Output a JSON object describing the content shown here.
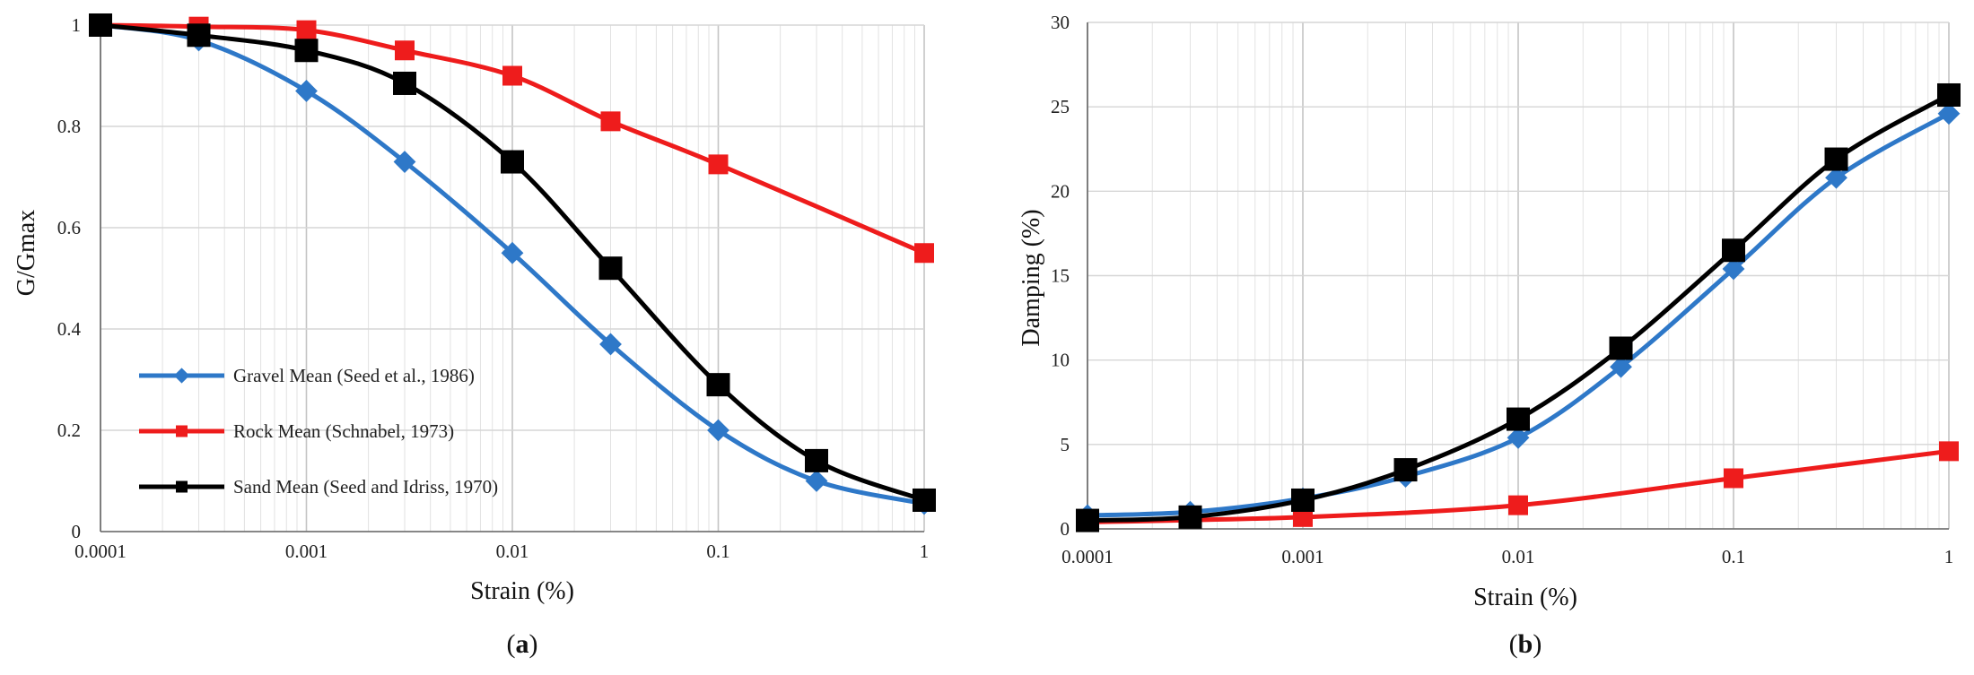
{
  "chart_data": [
    {
      "type": "line",
      "panel_label": "(a)",
      "panel_letter": "a",
      "xlabel": "Strain (%)",
      "ylabel": "G/Gmax",
      "xscale": "log",
      "xlim": [
        0.0001,
        1
      ],
      "ylim": [
        0,
        1
      ],
      "x_ticks": [
        "0.0001",
        "0.001",
        "0.01",
        "0.1",
        "1"
      ],
      "y_ticks": [
        "0",
        "0.2",
        "0.4",
        "0.6",
        "0.8",
        "1"
      ],
      "grid": true,
      "legend_position": "left-lower",
      "series": [
        {
          "name": "Gravel Mean (Seed et al., 1986)",
          "color": "#2e78c8",
          "marker": "diamond",
          "x": [
            0.0001,
            0.0003,
            0.001,
            0.003,
            0.01,
            0.03,
            0.1,
            0.3,
            1
          ],
          "y": [
            1.0,
            0.97,
            0.87,
            0.73,
            0.55,
            0.37,
            0.2,
            0.1,
            0.055
          ]
        },
        {
          "name": "Rock Mean (Schnabel, 1973)",
          "color": "#ee1c1c",
          "marker": "square",
          "x": [
            0.0001,
            0.0003,
            0.001,
            0.003,
            0.01,
            0.03,
            0.1,
            1
          ],
          "y": [
            1.0,
            0.997,
            0.99,
            0.95,
            0.9,
            0.81,
            0.725,
            0.55
          ]
        },
        {
          "name": "Sand Mean (Seed and Idriss, 1970)",
          "color": "#000000",
          "marker": "square",
          "x": [
            0.0001,
            0.0003,
            0.001,
            0.003,
            0.01,
            0.03,
            0.1,
            0.3,
            1
          ],
          "y": [
            1.0,
            0.98,
            0.95,
            0.885,
            0.73,
            0.52,
            0.29,
            0.14,
            0.062
          ]
        }
      ]
    },
    {
      "type": "line",
      "panel_label": "(b)",
      "panel_letter": "b",
      "xlabel": "Strain (%)",
      "ylabel": "Damping (%)",
      "xscale": "log",
      "xlim": [
        0.0001,
        1
      ],
      "ylim": [
        0,
        30
      ],
      "x_ticks": [
        "0.0001",
        "0.001",
        "0.01",
        "0.1",
        "1"
      ],
      "y_ticks": [
        "0",
        "5",
        "10",
        "15",
        "20",
        "25",
        "30"
      ],
      "grid": true,
      "series": [
        {
          "name": "Gravel Mean (Seed et al., 1986)",
          "color": "#2e78c8",
          "marker": "diamond",
          "x": [
            0.0001,
            0.0003,
            0.001,
            0.003,
            0.01,
            0.03,
            0.1,
            0.3,
            1
          ],
          "y": [
            0.8,
            1.0,
            1.8,
            3.1,
            5.4,
            9.6,
            15.4,
            20.8,
            24.6
          ]
        },
        {
          "name": "Rock Mean (Schnabel, 1973)",
          "color": "#ee1c1c",
          "marker": "square",
          "x": [
            0.0001,
            0.001,
            0.01,
            0.1,
            1
          ],
          "y": [
            0.4,
            0.7,
            1.4,
            3.0,
            4.6
          ]
        },
        {
          "name": "Sand Mean (Seed and Idriss, 1970)",
          "color": "#000000",
          "marker": "square",
          "x": [
            0.0001,
            0.0003,
            0.001,
            0.003,
            0.01,
            0.03,
            0.1,
            0.3,
            1
          ],
          "y": [
            0.5,
            0.7,
            1.7,
            3.5,
            6.5,
            10.7,
            16.5,
            21.9,
            25.7
          ]
        }
      ]
    }
  ]
}
